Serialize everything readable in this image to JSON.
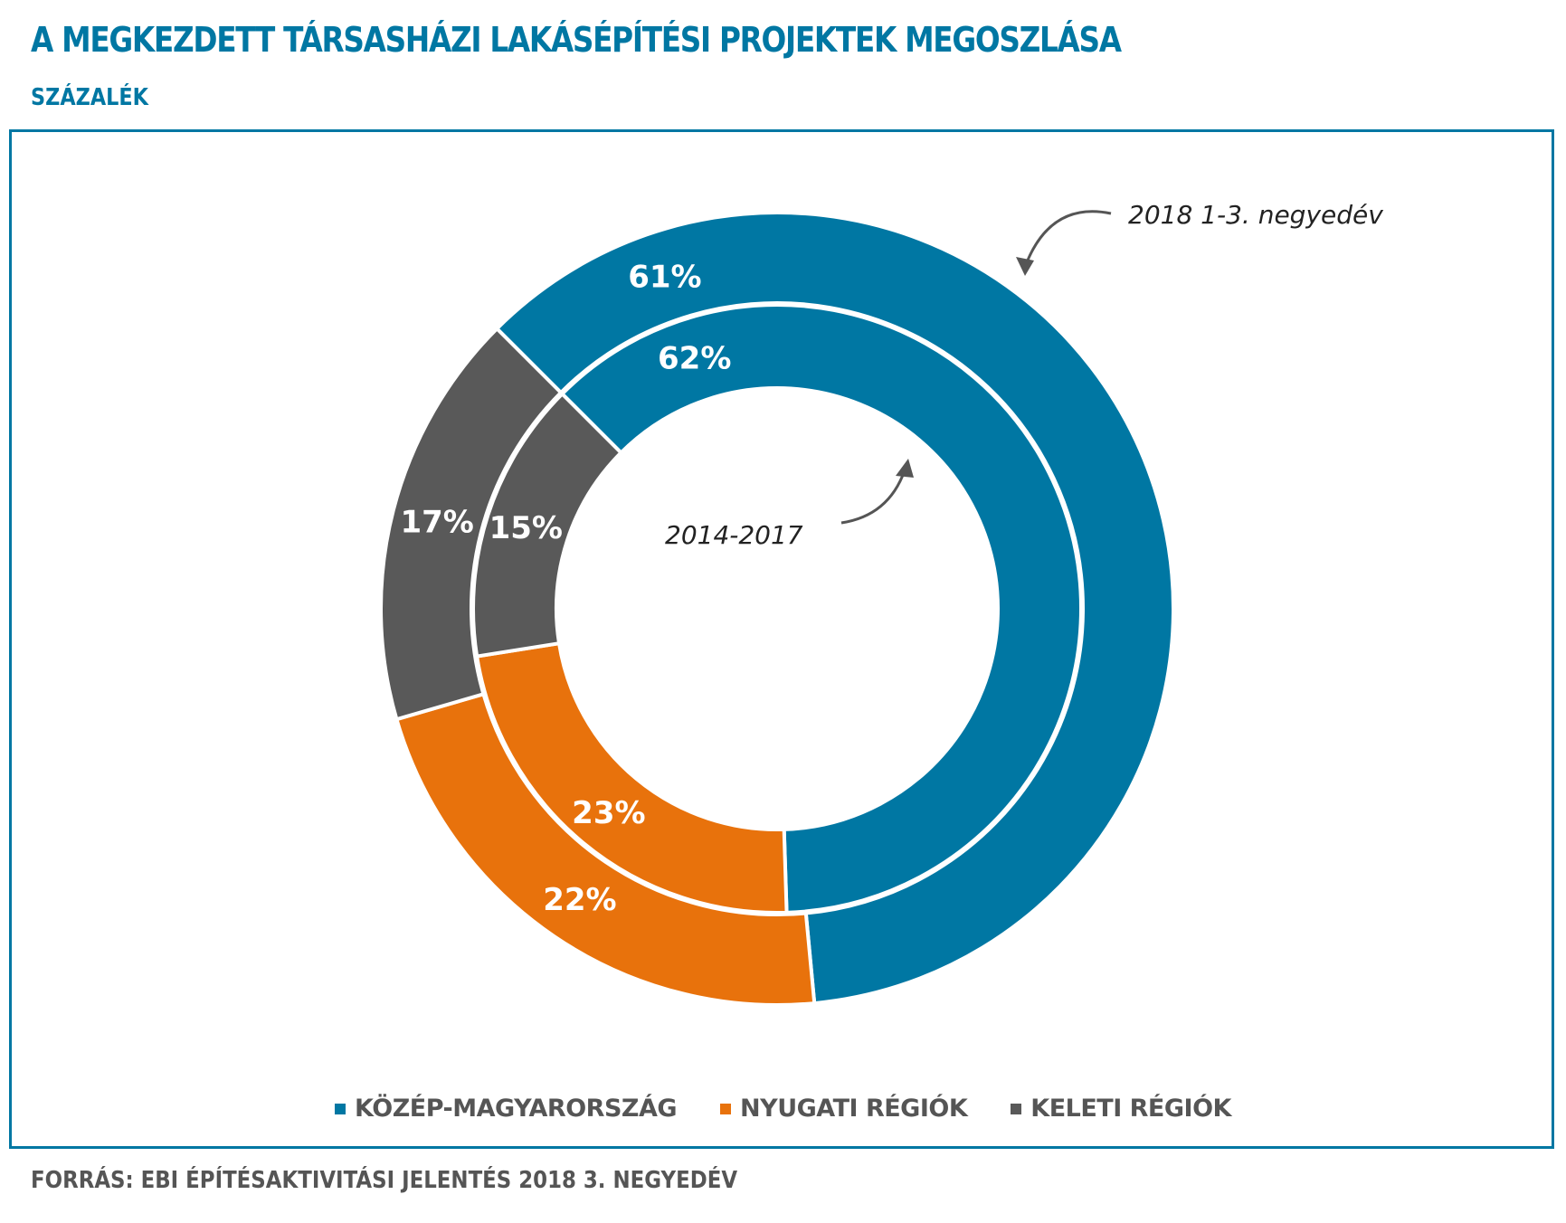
{
  "title": "A MEGKEZDETT TÁRSASHÁZI LAKÁSÉPÍTÉSI PROJEKTEK MEGOSZLÁSA",
  "subtitle": "SZÁZALÉK",
  "source": "FORRÁS: EBI ÉPÍTÉSAKTIVITÁSI JELENTÉS 2018 3. NEGYEDÉV",
  "annotations": {
    "outer": "2018 1-3. negyedév",
    "inner": "2014-2017"
  },
  "colors": {
    "kozep": "#0077a3",
    "nyugati": "#e8720c",
    "keleti": "#595959",
    "accent": "#0077a3"
  },
  "chart_data": {
    "type": "pie",
    "categories": [
      "KÖZÉP-MAGYARORSZÁG",
      "NYUGATI RÉGIÓK",
      "KELETI RÉGIÓK"
    ],
    "series": [
      {
        "name": "2018 1-3. negyedév",
        "values": [
          61,
          22,
          17
        ]
      },
      {
        "name": "2014-2017",
        "values": [
          62,
          23,
          15
        ]
      }
    ],
    "value_labels": {
      "outer": [
        "61%",
        "22%",
        "17%"
      ],
      "inner": [
        "62%",
        "23%",
        "15%"
      ]
    },
    "legend": "bottom"
  }
}
